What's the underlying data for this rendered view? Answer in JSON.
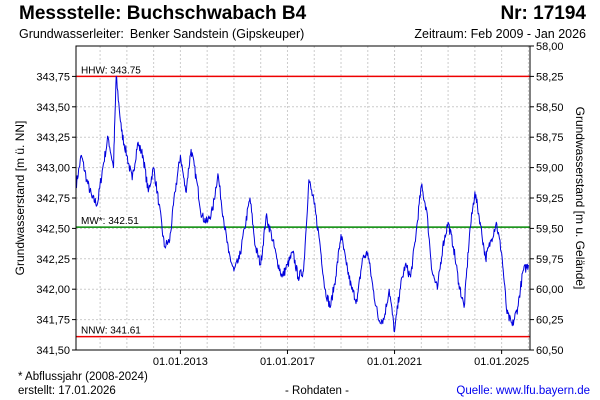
{
  "header": {
    "title": "Messstelle: Buchschwabach B4",
    "nr": "Nr: 17194",
    "aquifer_label": "Grundwasserleiter:",
    "aquifer": "Benker Sandstein (Gipskeuper)",
    "period": "Zeitraum: Feb 2009 - Jan 2026"
  },
  "footer": {
    "note": "* Abflussjahr (2008-2024)",
    "created": "erstellt:  17.01.2026",
    "rawdata": "- Rohdaten -",
    "source": "Quelle:  www.lfu.bayern.de"
  },
  "chart_data": {
    "type": "line",
    "ylabel": "Grundwasserstand [m ü. NN]",
    "y2label": "Grundwasserstand [m u. Gelände]",
    "ylim": [
      341.5,
      344.0
    ],
    "y_ticks": [
      "341,50",
      "341,75",
      "342,00",
      "342,25",
      "342,50",
      "342,75",
      "343,00",
      "343,25",
      "343,50",
      "343,75"
    ],
    "y2lim": [
      60.5,
      58.0
    ],
    "y2_ticks": [
      "60,50",
      "60,25",
      "60,00",
      "59,75",
      "59,50",
      "59,25",
      "59,00",
      "58,75",
      "58,50",
      "58,25",
      "58,00"
    ],
    "x_ticks": [
      {
        "label": "01.01.2013",
        "x": 2013.0
      },
      {
        "label": "01.01.2017",
        "x": 2017.0
      },
      {
        "label": "01.01.2021",
        "x": 2021.0
      },
      {
        "label": "01.01.2025",
        "x": 2025.0
      }
    ],
    "xlim": [
      2009.1,
      2026.06
    ],
    "grid": true,
    "colors": {
      "series": "#0000dd",
      "hhw": "#ee0000",
      "mw": "#008800",
      "nnw": "#ee0000",
      "grid": "#cccccc"
    },
    "reference_lines": [
      {
        "label": "HHW: 343.75",
        "value": 343.75,
        "color": "#ee0000"
      },
      {
        "label": "MW*: 342.51",
        "value": 342.51,
        "color": "#008800"
      },
      {
        "label": "NNW: 341.61",
        "value": 341.61,
        "color": "#ee0000"
      }
    ],
    "series": [
      {
        "x": [
          2009.1,
          2009.3,
          2009.5,
          2009.7,
          2009.9,
          2010.1,
          2010.3,
          2010.5,
          2010.6,
          2010.8,
          2011.0,
          2011.2,
          2011.4,
          2011.6,
          2011.8,
          2012.0,
          2012.2,
          2012.4,
          2012.6,
          2012.8,
          2013.0,
          2013.2,
          2013.4,
          2013.6,
          2013.8,
          2014.0,
          2014.2,
          2014.4,
          2014.6,
          2014.8,
          2015.0,
          2015.2,
          2015.4,
          2015.6,
          2015.8,
          2016.0,
          2016.2,
          2016.4,
          2016.6,
          2016.8,
          2017.0,
          2017.2,
          2017.4,
          2017.6,
          2017.8,
          2018.0,
          2018.2,
          2018.4,
          2018.6,
          2018.8,
          2019.0,
          2019.2,
          2019.4,
          2019.6,
          2019.8,
          2020.0,
          2020.2,
          2020.4,
          2020.6,
          2020.8,
          2021.0,
          2021.2,
          2021.4,
          2021.6,
          2021.8,
          2022.0,
          2022.2,
          2022.4,
          2022.6,
          2022.8,
          2023.0,
          2023.2,
          2023.4,
          2023.6,
          2023.8,
          2024.0,
          2024.2,
          2024.4,
          2024.6,
          2024.8,
          2025.0,
          2025.2,
          2025.4,
          2025.6,
          2025.8,
          2026.0
        ],
        "y": [
          342.85,
          343.1,
          342.9,
          342.75,
          342.7,
          343.0,
          343.25,
          343.0,
          343.75,
          343.3,
          343.1,
          342.9,
          343.2,
          343.1,
          342.8,
          343.0,
          342.7,
          342.35,
          342.4,
          342.8,
          343.1,
          342.8,
          343.15,
          342.9,
          342.6,
          342.55,
          342.65,
          342.95,
          342.6,
          342.3,
          342.15,
          342.25,
          342.5,
          342.75,
          342.35,
          342.2,
          342.6,
          342.45,
          342.25,
          342.1,
          342.2,
          342.3,
          342.1,
          342.15,
          342.9,
          342.7,
          342.4,
          342.0,
          341.85,
          342.1,
          342.45,
          342.2,
          342.0,
          341.9,
          342.25,
          342.3,
          342.0,
          341.75,
          341.75,
          342.0,
          341.65,
          342.0,
          342.2,
          342.1,
          342.45,
          342.85,
          342.65,
          342.15,
          342.0,
          342.35,
          342.55,
          342.35,
          342.05,
          341.85,
          342.45,
          342.8,
          342.55,
          342.25,
          342.4,
          342.55,
          342.3,
          341.8,
          341.7,
          341.85,
          342.15,
          342.2
        ]
      }
    ]
  }
}
